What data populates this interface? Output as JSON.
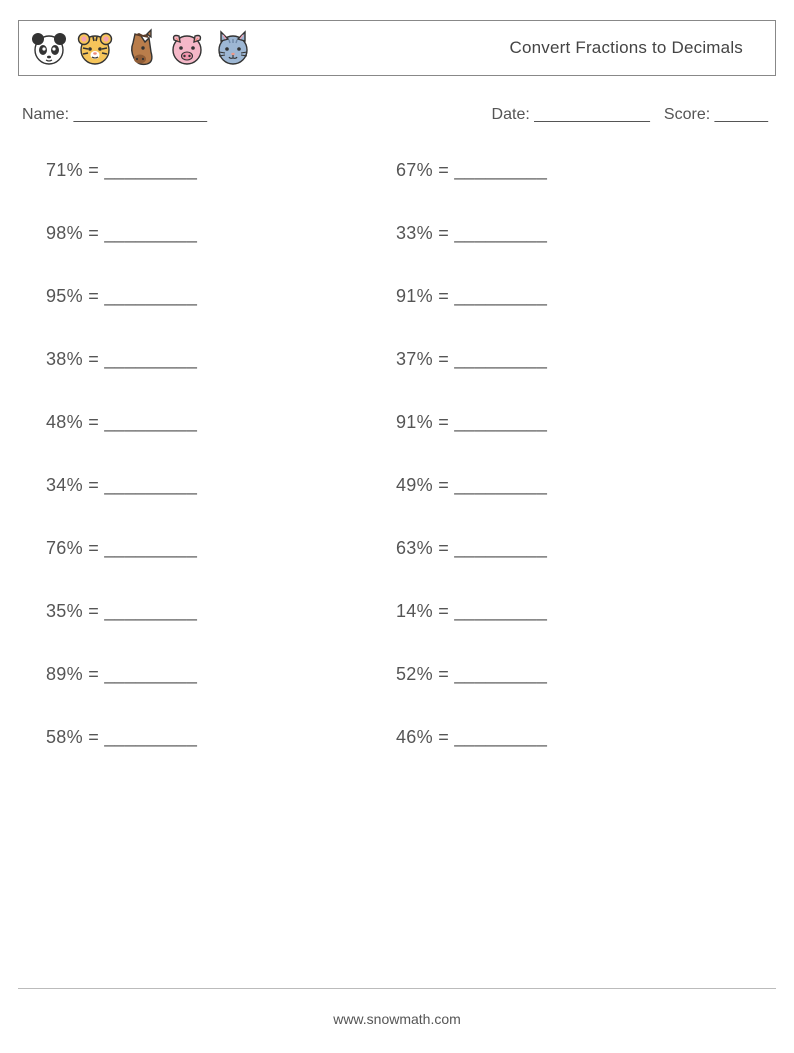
{
  "header": {
    "title": "Convert Fractions to Decimals",
    "icons": [
      "panda",
      "tiger",
      "horse",
      "pig",
      "cat"
    ]
  },
  "meta": {
    "name_label": "Name: _______________",
    "date_label": "Date: _____________",
    "score_label": "Score: ______"
  },
  "problems": {
    "blank": "_________",
    "col1": [
      "71%",
      "98%",
      "95%",
      "38%",
      "48%",
      "34%",
      "76%",
      "35%",
      "89%",
      "58%"
    ],
    "col2": [
      "67%",
      "33%",
      "91%",
      "37%",
      "91%",
      "49%",
      "63%",
      "14%",
      "52%",
      "46%"
    ]
  },
  "footer": {
    "url": "www.snowmath.com"
  },
  "colors": {
    "text": "#555555",
    "border": "#888888",
    "background": "#ffffff"
  }
}
